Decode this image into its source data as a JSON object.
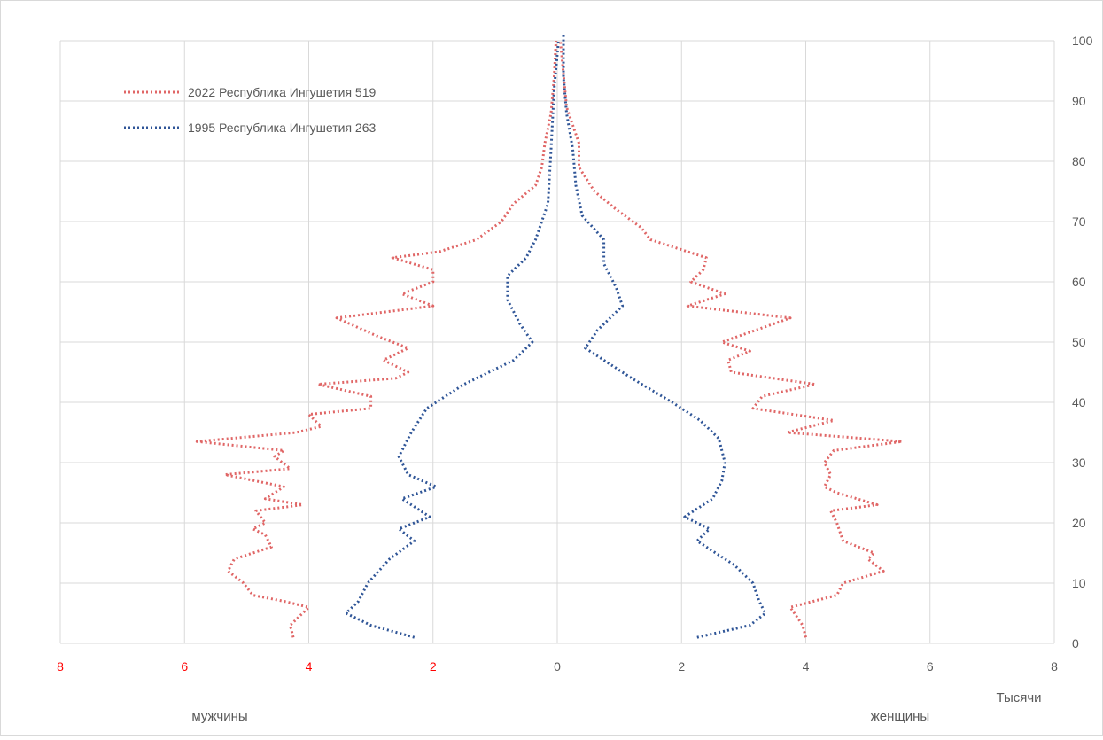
{
  "chart_data": {
    "type": "line",
    "title": "",
    "xlabel": "Тысячи",
    "ylabel": "",
    "left_label": "мужчины",
    "right_label": "женщины",
    "xlim": [
      -8,
      8
    ],
    "ylim": [
      0,
      100
    ],
    "x_ticks": [
      {
        "value": -8,
        "label": "8",
        "color": "#ff0000"
      },
      {
        "value": -6,
        "label": "6",
        "color": "#ff0000"
      },
      {
        "value": -4,
        "label": "4",
        "color": "#ff0000"
      },
      {
        "value": -2,
        "label": "2",
        "color": "#ff0000"
      },
      {
        "value": 0,
        "label": "0",
        "color": "#595959"
      },
      {
        "value": 2,
        "label": "2",
        "color": "#595959"
      },
      {
        "value": 4,
        "label": "4",
        "color": "#595959"
      },
      {
        "value": 6,
        "label": "6",
        "color": "#595959"
      },
      {
        "value": 8,
        "label": "8",
        "color": "#595959"
      }
    ],
    "y_ticks": [
      0,
      10,
      20,
      30,
      40,
      50,
      60,
      70,
      80,
      90,
      100
    ],
    "grid": true,
    "legend_position": "top-left",
    "series": [
      {
        "name": "2022 Республика Ингушетия  519",
        "color": "#e06666",
        "style": "dotted",
        "points": [
          [
            -4.25,
            1
          ],
          [
            -4.3,
            3
          ],
          [
            -4.0,
            6
          ],
          [
            -4.4,
            7
          ],
          [
            -4.9,
            8
          ],
          [
            -5.05,
            10
          ],
          [
            -5.3,
            12
          ],
          [
            -5.2,
            14
          ],
          [
            -4.9,
            15
          ],
          [
            -4.6,
            16
          ],
          [
            -4.7,
            18
          ],
          [
            -4.9,
            19
          ],
          [
            -4.7,
            20
          ],
          [
            -4.85,
            22
          ],
          [
            -4.1,
            23
          ],
          [
            -4.7,
            24
          ],
          [
            -4.4,
            26
          ],
          [
            -5.35,
            28
          ],
          [
            -4.3,
            29
          ],
          [
            -4.55,
            31
          ],
          [
            -4.4,
            32
          ],
          [
            -5.8,
            33.5
          ],
          [
            -4.2,
            35
          ],
          [
            -3.8,
            36
          ],
          [
            -4.0,
            38
          ],
          [
            -3.0,
            39
          ],
          [
            -3.0,
            41
          ],
          [
            -3.85,
            43
          ],
          [
            -2.6,
            44
          ],
          [
            -2.4,
            45
          ],
          [
            -2.8,
            47
          ],
          [
            -2.4,
            49
          ],
          [
            -2.9,
            51
          ],
          [
            -3.55,
            54
          ],
          [
            -2.0,
            56
          ],
          [
            -2.5,
            58
          ],
          [
            -2.0,
            60
          ],
          [
            -2.0,
            62
          ],
          [
            -2.65,
            64
          ],
          [
            -1.9,
            65
          ],
          [
            -1.3,
            67
          ],
          [
            -0.9,
            70
          ],
          [
            -0.7,
            73
          ],
          [
            -0.35,
            76
          ],
          [
            -0.25,
            79
          ],
          [
            -0.2,
            83
          ],
          [
            -0.1,
            88
          ],
          [
            -0.05,
            94
          ],
          [
            -0.02,
            100
          ]
        ]
      },
      {
        "name": "1995 Республика Ингушетия  263",
        "color": "#2f5597",
        "style": "dotted",
        "points": [
          [
            -2.3,
            1
          ],
          [
            -3.0,
            3
          ],
          [
            -3.4,
            5
          ],
          [
            -3.2,
            7
          ],
          [
            -3.05,
            10
          ],
          [
            -2.7,
            14
          ],
          [
            -2.3,
            17
          ],
          [
            -2.55,
            19
          ],
          [
            -2.05,
            21
          ],
          [
            -2.5,
            24
          ],
          [
            -1.95,
            26
          ],
          [
            -2.4,
            28
          ],
          [
            -2.55,
            31
          ],
          [
            -2.35,
            35
          ],
          [
            -2.1,
            39
          ],
          [
            -1.5,
            43
          ],
          [
            -0.7,
            47
          ],
          [
            -0.4,
            50
          ],
          [
            -0.6,
            53
          ],
          [
            -0.8,
            57
          ],
          [
            -0.8,
            61
          ],
          [
            -0.5,
            64
          ],
          [
            -0.35,
            67
          ],
          [
            -0.15,
            73
          ],
          [
            -0.1,
            82
          ],
          [
            -0.05,
            92
          ],
          [
            0.02,
            100
          ]
        ]
      },
      {
        "name": "",
        "color": "#e06666",
        "style": "dotted",
        "points": [
          [
            4.0,
            1
          ],
          [
            3.95,
            3
          ],
          [
            3.75,
            6
          ],
          [
            4.5,
            8
          ],
          [
            4.6,
            10
          ],
          [
            5.25,
            12
          ],
          [
            5.0,
            14
          ],
          [
            5.1,
            15
          ],
          [
            4.6,
            17
          ],
          [
            4.5,
            20
          ],
          [
            4.4,
            22
          ],
          [
            5.15,
            23
          ],
          [
            4.5,
            25
          ],
          [
            4.3,
            26
          ],
          [
            4.4,
            28
          ],
          [
            4.3,
            30
          ],
          [
            4.45,
            32
          ],
          [
            5.55,
            33.5
          ],
          [
            3.7,
            35
          ],
          [
            4.45,
            37
          ],
          [
            3.15,
            39
          ],
          [
            3.3,
            41
          ],
          [
            4.15,
            43
          ],
          [
            2.8,
            45
          ],
          [
            2.75,
            47
          ],
          [
            3.1,
            48.5
          ],
          [
            2.65,
            50
          ],
          [
            3.2,
            52
          ],
          [
            3.75,
            54
          ],
          [
            2.1,
            56
          ],
          [
            2.7,
            58
          ],
          [
            2.15,
            60
          ],
          [
            2.35,
            62
          ],
          [
            2.4,
            64
          ],
          [
            1.5,
            67
          ],
          [
            1.35,
            69
          ],
          [
            0.95,
            72
          ],
          [
            0.6,
            75
          ],
          [
            0.35,
            79
          ],
          [
            0.35,
            83
          ],
          [
            0.15,
            89
          ],
          [
            0.05,
            100
          ]
        ]
      },
      {
        "name": "",
        "color": "#2f5597",
        "style": "dotted",
        "points": [
          [
            2.25,
            1
          ],
          [
            3.1,
            3
          ],
          [
            3.35,
            5
          ],
          [
            3.25,
            7
          ],
          [
            3.15,
            10
          ],
          [
            2.85,
            13
          ],
          [
            2.55,
            15
          ],
          [
            2.25,
            17
          ],
          [
            2.45,
            19
          ],
          [
            2.05,
            21
          ],
          [
            2.5,
            24
          ],
          [
            2.65,
            27
          ],
          [
            2.7,
            30
          ],
          [
            2.6,
            34
          ],
          [
            2.3,
            37
          ],
          [
            1.85,
            40
          ],
          [
            1.2,
            44
          ],
          [
            0.45,
            49
          ],
          [
            0.65,
            52
          ],
          [
            1.05,
            56
          ],
          [
            0.95,
            59
          ],
          [
            0.75,
            63
          ],
          [
            0.75,
            67
          ],
          [
            0.4,
            71
          ],
          [
            0.3,
            76
          ],
          [
            0.25,
            82
          ],
          [
            0.15,
            88
          ],
          [
            0.1,
            94
          ],
          [
            0.1,
            101
          ]
        ]
      }
    ]
  }
}
